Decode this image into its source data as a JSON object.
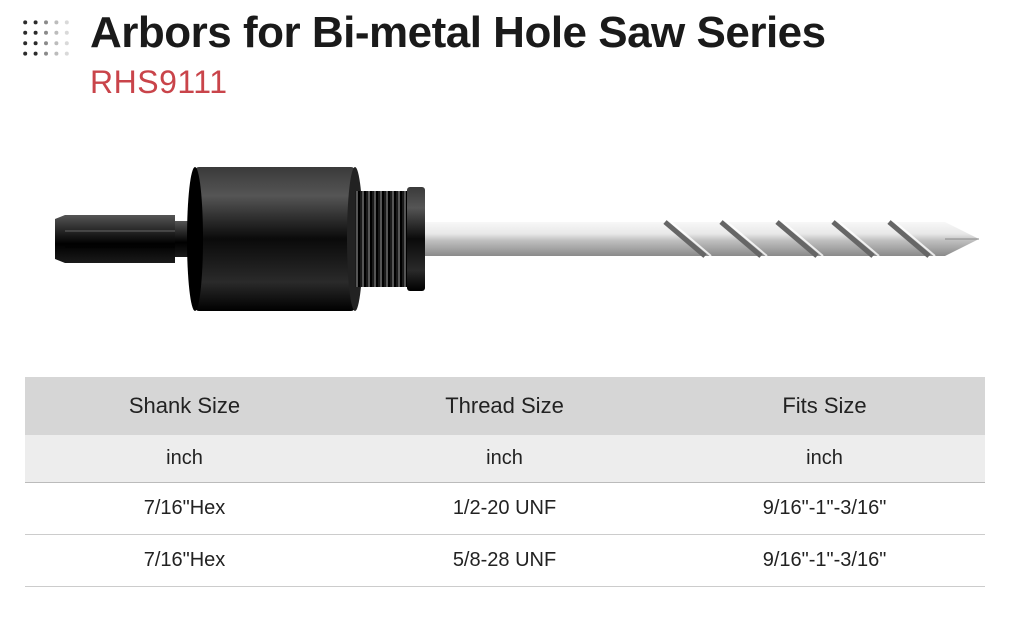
{
  "header": {
    "title": "Arbors for Bi-metal Hole Saw Series",
    "subtitle": "RHS9111"
  },
  "dot_grid": {
    "cols": 5,
    "rows": 4,
    "spacing": 12,
    "radius": 2.3,
    "colors_by_col": [
      "#2b2b2b",
      "#2b2b2b",
      "#8a8a8a",
      "#bcbcbc",
      "#d9d9d9"
    ]
  },
  "product": {
    "hex_shank_color": "#1a1a1a",
    "collar_color": "#151515",
    "collar_highlight": "#4a4a4a",
    "thread_color": "#0f0f0f",
    "drill_body_color": "#d8d8d8",
    "drill_highlight": "#f5f5f5",
    "drill_shadow": "#9a9a9a"
  },
  "table": {
    "columns": [
      "Shank Size",
      "Thread Size",
      "Fits Size"
    ],
    "unit_row": [
      "inch",
      "inch",
      "inch"
    ],
    "rows": [
      [
        "7/16\"Hex",
        "1/2-20 UNF",
        "9/16\"-1\"-3/16\""
      ],
      [
        "7/16\"Hex",
        "5/8-28 UNF",
        "9/16\"-1\"-3/16\""
      ]
    ],
    "header_bg": "#d6d6d6",
    "unit_bg": "#ededed",
    "border_color": "#bbbbbb",
    "font_size_header": 22,
    "font_size_body": 20
  },
  "colors": {
    "title": "#1a1a1a",
    "subtitle": "#c9444a",
    "page_bg": "#ffffff"
  }
}
